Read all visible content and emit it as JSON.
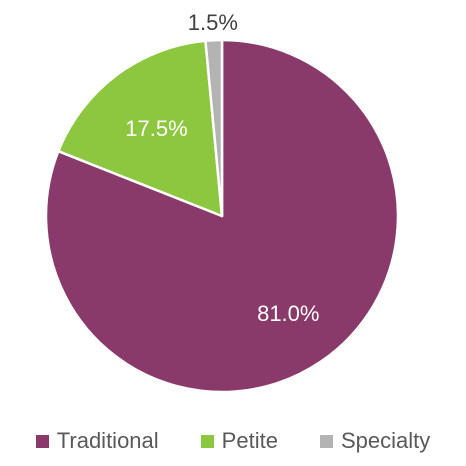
{
  "chart_data": {
    "type": "pie",
    "title": "",
    "slices": [
      {
        "label": "Traditional",
        "value": 81.0,
        "display": "81.0%",
        "color": "#8A3A6A",
        "label_color": "#FFFFFF"
      },
      {
        "label": "Petite",
        "value": 17.5,
        "display": "17.5%",
        "color": "#8DC63F",
        "label_color": "#FFFFFF"
      },
      {
        "label": "Specialty",
        "value": 1.5,
        "display": "1.5%",
        "color": "#B3B3B3",
        "label_color": "#404040"
      }
    ],
    "start_angle_deg": 0,
    "direction": "clockwise",
    "legend_position": "bottom"
  }
}
